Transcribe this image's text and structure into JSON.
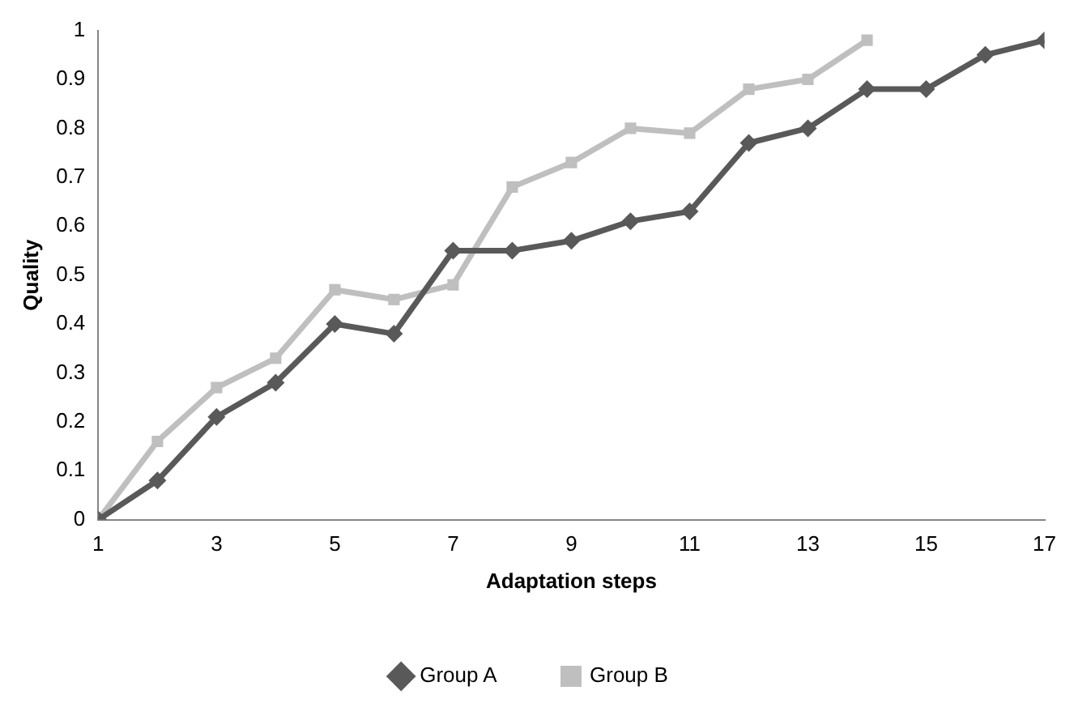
{
  "chart_data": {
    "type": "line",
    "xlabel": "Adaptation steps",
    "ylabel": "Quality",
    "x": [
      1,
      2,
      3,
      4,
      5,
      6,
      7,
      8,
      9,
      10,
      11,
      12,
      13,
      14,
      15,
      16,
      17
    ],
    "series": [
      {
        "name": "Group A",
        "color": "#595959",
        "marker": "diamond",
        "values": [
          0,
          0.08,
          0.21,
          0.28,
          0.4,
          0.38,
          0.55,
          0.55,
          0.57,
          0.61,
          0.63,
          0.77,
          0.8,
          0.88,
          0.88,
          0.95,
          0.98
        ]
      },
      {
        "name": "Group B",
        "color": "#bfbfbf",
        "marker": "square",
        "values": [
          0,
          0.16,
          0.27,
          0.33,
          0.47,
          0.45,
          0.48,
          0.68,
          0.73,
          0.8,
          0.79,
          0.88,
          0.9,
          0.98,
          null,
          null,
          null
        ]
      }
    ],
    "xlim": [
      1,
      17
    ],
    "xticks": [
      1,
      3,
      5,
      7,
      9,
      11,
      13,
      15,
      17
    ],
    "ylim": [
      0,
      1
    ],
    "yticks": [
      0,
      0.1,
      0.2,
      0.3,
      0.4,
      0.5,
      0.6,
      0.7,
      0.8,
      0.9,
      1
    ],
    "grid": false,
    "legend": "bottom",
    "line_style": "solid"
  }
}
